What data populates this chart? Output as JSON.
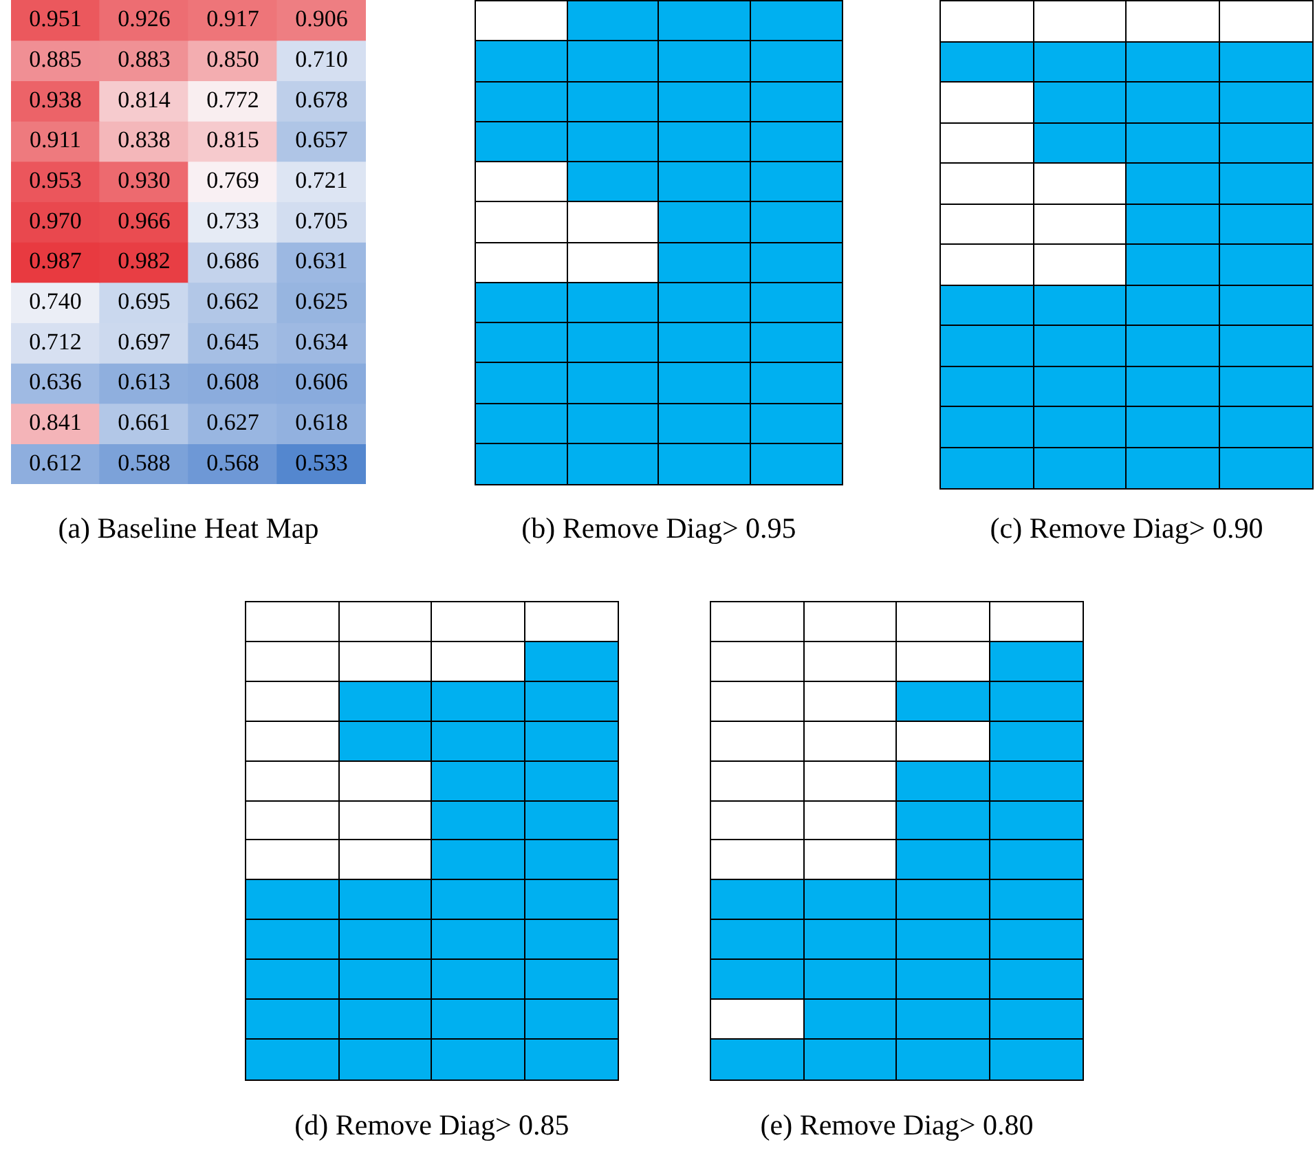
{
  "chart_data": [
    {
      "type": "heatmap",
      "title": "(a) Baseline Heat Map",
      "categories": [
        null,
        null,
        null,
        null
      ],
      "y_categories": [
        null,
        null,
        null,
        null,
        null,
        null,
        null,
        null,
        null,
        null,
        null,
        null
      ],
      "data_labels": true,
      "cells": [
        [
          0.951,
          0.926,
          0.917,
          0.906
        ],
        [
          0.885,
          0.883,
          0.85,
          0.71
        ],
        [
          0.938,
          0.814,
          0.772,
          0.678
        ],
        [
          0.911,
          0.838,
          0.815,
          0.657
        ],
        [
          0.953,
          0.93,
          0.769,
          0.721
        ],
        [
          0.97,
          0.966,
          0.733,
          0.705
        ],
        [
          0.987,
          0.982,
          0.686,
          0.631
        ],
        [
          0.74,
          0.695,
          0.662,
          0.625
        ],
        [
          0.712,
          0.697,
          0.645,
          0.634
        ],
        [
          0.636,
          0.613,
          0.608,
          0.606
        ],
        [
          0.841,
          0.661,
          0.627,
          0.618
        ],
        [
          0.612,
          0.588,
          0.568,
          0.533
        ]
      ],
      "cell_labels": [
        [
          "0.951",
          "0.926",
          "0.917",
          "0.906"
        ],
        [
          "0.885",
          "0.883",
          "0.850",
          "0.710"
        ],
        [
          "0.938",
          "0.814",
          "0.772",
          "0.678"
        ],
        [
          "0.911",
          "0.838",
          "0.815",
          "0.657"
        ],
        [
          "0.953",
          "0.930",
          "0.769",
          "0.721"
        ],
        [
          "0.970",
          "0.966",
          "0.733",
          "0.705"
        ],
        [
          "0.987",
          "0.982",
          "0.686",
          "0.631"
        ],
        [
          "0.740",
          "0.695",
          "0.662",
          "0.625"
        ],
        [
          "0.712",
          "0.697",
          "0.645",
          "0.634"
        ],
        [
          "0.636",
          "0.613",
          "0.608",
          "0.606"
        ],
        [
          "0.841",
          "0.661",
          "0.627",
          "0.618"
        ],
        [
          "0.612",
          "0.588",
          "0.568",
          "0.533"
        ]
      ]
    },
    {
      "type": "other",
      "title": "(b) Remove Diag> 0.95",
      "color": "#00b0f0",
      "cells": [
        [
          false,
          true,
          true,
          true
        ],
        [
          true,
          true,
          true,
          true
        ],
        [
          true,
          true,
          true,
          true
        ],
        [
          true,
          true,
          true,
          true
        ],
        [
          false,
          true,
          true,
          true
        ],
        [
          false,
          false,
          true,
          true
        ],
        [
          false,
          false,
          true,
          true
        ],
        [
          true,
          true,
          true,
          true
        ],
        [
          true,
          true,
          true,
          true
        ],
        [
          true,
          true,
          true,
          true
        ],
        [
          true,
          true,
          true,
          true
        ],
        [
          true,
          true,
          true,
          true
        ]
      ]
    },
    {
      "type": "other",
      "title": "(c) Remove Diag> 0.90",
      "color": "#00b0f0",
      "cells": [
        [
          false,
          false,
          false,
          false
        ],
        [
          true,
          true,
          true,
          true
        ],
        [
          false,
          true,
          true,
          true
        ],
        [
          false,
          true,
          true,
          true
        ],
        [
          false,
          false,
          true,
          true
        ],
        [
          false,
          false,
          true,
          true
        ],
        [
          false,
          false,
          true,
          true
        ],
        [
          true,
          true,
          true,
          true
        ],
        [
          true,
          true,
          true,
          true
        ],
        [
          true,
          true,
          true,
          true
        ],
        [
          true,
          true,
          true,
          true
        ],
        [
          true,
          true,
          true,
          true
        ]
      ]
    },
    {
      "type": "other",
      "title": "(d) Remove Diag> 0.85",
      "color": "#00b0f0",
      "cells": [
        [
          false,
          false,
          false,
          false
        ],
        [
          false,
          false,
          false,
          true
        ],
        [
          false,
          true,
          true,
          true
        ],
        [
          false,
          true,
          true,
          true
        ],
        [
          false,
          false,
          true,
          true
        ],
        [
          false,
          false,
          true,
          true
        ],
        [
          false,
          false,
          true,
          true
        ],
        [
          true,
          true,
          true,
          true
        ],
        [
          true,
          true,
          true,
          true
        ],
        [
          true,
          true,
          true,
          true
        ],
        [
          true,
          true,
          true,
          true
        ],
        [
          true,
          true,
          true,
          true
        ]
      ]
    },
    {
      "type": "other",
      "title": "(e) Remove Diag> 0.80",
      "color": "#00b0f0",
      "cells": [
        [
          false,
          false,
          false,
          false
        ],
        [
          false,
          false,
          false,
          true
        ],
        [
          false,
          false,
          true,
          true
        ],
        [
          false,
          false,
          false,
          true
        ],
        [
          false,
          false,
          true,
          true
        ],
        [
          false,
          false,
          true,
          true
        ],
        [
          false,
          false,
          true,
          true
        ],
        [
          true,
          true,
          true,
          true
        ],
        [
          true,
          true,
          true,
          true
        ],
        [
          true,
          true,
          true,
          true
        ],
        [
          false,
          true,
          true,
          true
        ],
        [
          true,
          true,
          true,
          true
        ]
      ]
    }
  ]
}
